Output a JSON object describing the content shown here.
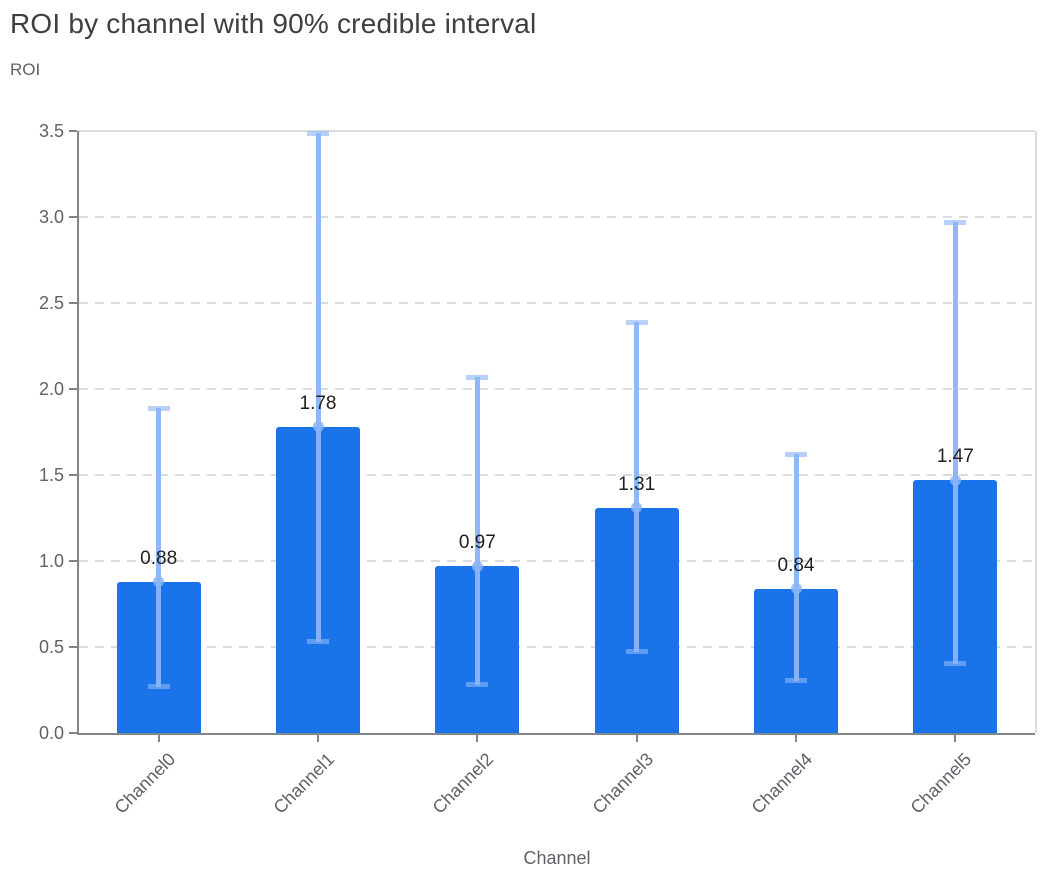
{
  "chart_data": {
    "type": "bar",
    "title": "ROI by channel with 90% credible interval",
    "ylabel": "ROI",
    "xlabel": "Channel",
    "categories": [
      "Channel0",
      "Channel1",
      "Channel2",
      "Channel3",
      "Channel4",
      "Channel5"
    ],
    "values": [
      0.88,
      1.78,
      0.97,
      1.31,
      0.84,
      1.47
    ],
    "value_labels": [
      "0.88",
      "1.78",
      "0.97",
      "1.31",
      "0.84",
      "1.47"
    ],
    "ci_lower": [
      0.27,
      0.53,
      0.28,
      0.47,
      0.3,
      0.4
    ],
    "ci_upper": [
      1.89,
      3.49,
      2.07,
      2.39,
      1.62,
      2.97
    ],
    "ylim": [
      0,
      3.5
    ],
    "ytick_labels": [
      "0.0",
      "0.5",
      "1.0",
      "1.5",
      "2.0",
      "2.5",
      "3.0",
      "3.5"
    ],
    "grid": "horizontal-dashed",
    "legend_position": "none",
    "colors": {
      "bar": "#1a73e8",
      "error_stem": "#8ab4f8",
      "error_cap": "#aecbfa",
      "mean_marker": "#8ab4f8",
      "grid": "#dadce0",
      "axis": "#80868b",
      "title_text": "#3c4043",
      "axis_text": "#5f6368",
      "value_text": "#1f1f1f"
    }
  }
}
